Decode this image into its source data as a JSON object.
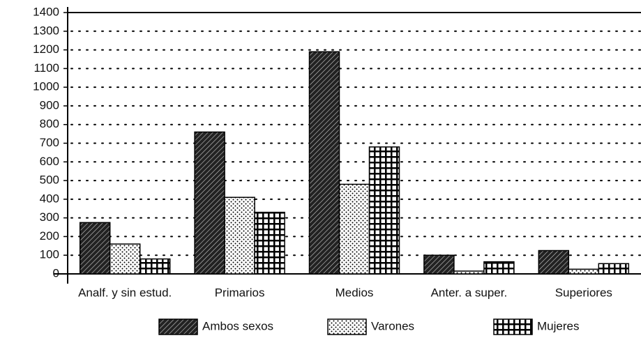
{
  "chart_data": {
    "type": "bar",
    "categories": [
      "Analf. y sin estud.",
      "Primarios",
      "Medios",
      "Anter. a super.",
      "Superiores"
    ],
    "series": [
      {
        "name": "Ambos sexos",
        "color": "#000000",
        "pattern": "hatch",
        "values": [
          275,
          760,
          1190,
          100,
          125
        ]
      },
      {
        "name": "Varones",
        "color": "#000000",
        "pattern": "dots",
        "values": [
          160,
          410,
          480,
          15,
          25
        ]
      },
      {
        "name": "Mujeres",
        "color": "#000000",
        "pattern": "grid",
        "values": [
          80,
          330,
          680,
          65,
          55
        ]
      }
    ],
    "ylim": [
      0,
      1400
    ],
    "yticks": [
      0,
      100,
      200,
      300,
      400,
      500,
      600,
      700,
      800,
      900,
      1000,
      1100,
      1200,
      1300,
      1400
    ],
    "grid": true,
    "legend": "bottom"
  }
}
